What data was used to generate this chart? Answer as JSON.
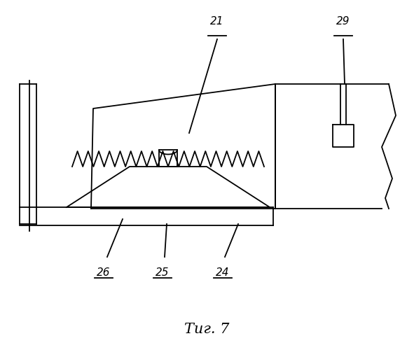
{
  "bg_color": "#ffffff",
  "line_color": "#000000",
  "fig_width": 5.91,
  "fig_height": 5.0,
  "dpi": 100,
  "caption": "Τиг. 7"
}
